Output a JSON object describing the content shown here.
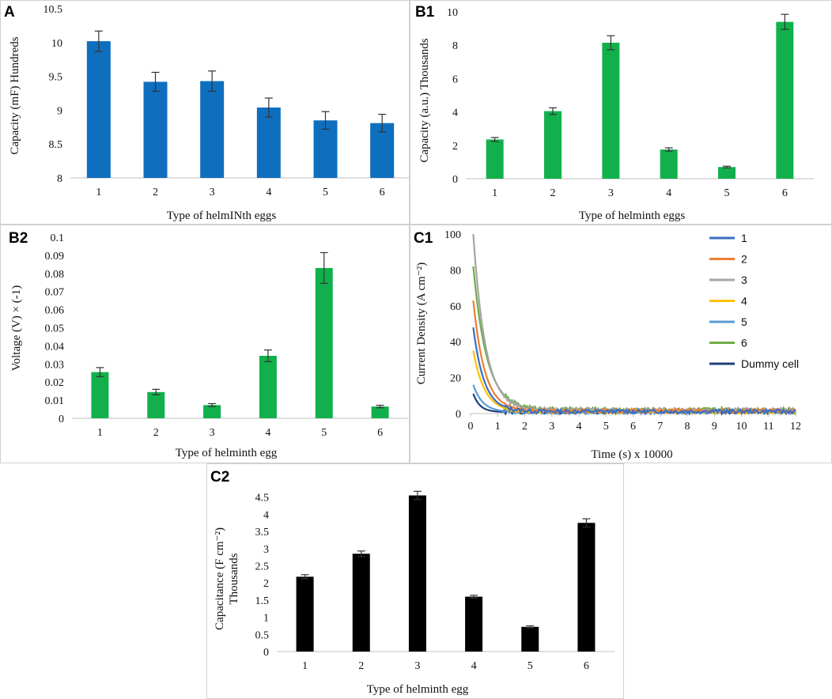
{
  "chart_data": [
    {
      "id": "A",
      "panel_label": "A",
      "type": "bar",
      "categories": [
        "1",
        "2",
        "3",
        "4",
        "5",
        "6"
      ],
      "values": [
        10.02,
        9.42,
        9.43,
        9.04,
        8.85,
        8.81
      ],
      "errors": [
        0.15,
        0.14,
        0.15,
        0.14,
        0.13,
        0.13
      ],
      "ylim": [
        8,
        10.5
      ],
      "yticks": [
        "8",
        "8.5",
        "9",
        "9.5",
        "10",
        "10.5"
      ],
      "ylabel": "Capacity (mF) Hundreds",
      "xlabel": "Type of helmINth eggs",
      "color": "#0f6fbf"
    },
    {
      "id": "B1",
      "panel_label": "B1",
      "type": "bar",
      "categories": [
        "1",
        "2",
        "3",
        "4",
        "5",
        "6"
      ],
      "values": [
        2.35,
        4.05,
        8.15,
        1.75,
        0.7,
        9.4
      ],
      "errors": [
        0.12,
        0.2,
        0.42,
        0.1,
        0.05,
        0.45
      ],
      "ylim": [
        0,
        10
      ],
      "yticks": [
        "0",
        "2",
        "4",
        "6",
        "8",
        "10"
      ],
      "ylabel": "Capacity (a.u.) Thousands",
      "xlabel": "Type of helminth eggs",
      "color": "#12b04c"
    },
    {
      "id": "B2",
      "panel_label": "B2",
      "type": "bar",
      "categories": [
        "1",
        "2",
        "3",
        "4",
        "5",
        "6"
      ],
      "values": [
        0.0255,
        0.0145,
        0.0073,
        0.0345,
        0.083,
        0.0065
      ],
      "errors": [
        0.0025,
        0.0015,
        0.0008,
        0.0032,
        0.0085,
        0.0007
      ],
      "ylim": [
        0,
        0.1
      ],
      "yticks": [
        "0",
        "0.01",
        "0.02",
        "0.03",
        "0.04",
        "0.05",
        "0.06",
        "0.07",
        "0.08",
        "0.09",
        "0.1"
      ],
      "ylabel": "Voltage (V) × (-1)",
      "xlabel": "Type of helminth egg",
      "color": "#12b04c"
    },
    {
      "id": "C1",
      "panel_label": "C1",
      "type": "line",
      "xlim": [
        0,
        12
      ],
      "ylim": [
        0,
        100
      ],
      "xticks": [
        "0",
        "1",
        "2",
        "3",
        "4",
        "5",
        "6",
        "7",
        "8",
        "9",
        "10",
        "11",
        "12"
      ],
      "yticks": [
        "0",
        "20",
        "40",
        "60",
        "80",
        "100"
      ],
      "ylabel": "Current Density (A cm⁻²)",
      "xlabel": "Time (s)  x 10000",
      "series": [
        {
          "name": "1",
          "color": "#3a6fc4",
          "peak": 48,
          "tau": 0.4,
          "base": 1.2
        },
        {
          "name": "2",
          "color": "#ed7d31",
          "peak": 63,
          "tau": 0.42,
          "base": 1.5
        },
        {
          "name": "3",
          "color": "#a5a5a5",
          "peak": 100,
          "tau": 0.45,
          "base": 2.0
        },
        {
          "name": "4",
          "color": "#ffc000",
          "peak": 35,
          "tau": 0.42,
          "base": 1.0
        },
        {
          "name": "5",
          "color": "#5b9bd5",
          "peak": 16,
          "tau": 0.35,
          "base": 0.8
        },
        {
          "name": "6",
          "color": "#70ad47",
          "peak": 82,
          "tau": 0.5,
          "base": 2.2
        },
        {
          "name": "Dummy cell",
          "color": "#1f3f7a",
          "peak": 11,
          "tau": 0.25,
          "base": 0.8
        }
      ]
    },
    {
      "id": "C2",
      "panel_label": "C2",
      "type": "bar",
      "categories": [
        "1",
        "2",
        "3",
        "4",
        "5",
        "6"
      ],
      "values": [
        2.18,
        2.85,
        4.55,
        1.6,
        0.72,
        3.75
      ],
      "errors": [
        0.06,
        0.08,
        0.12,
        0.04,
        0.03,
        0.12
      ],
      "ylim": [
        0,
        5
      ],
      "yticks": [
        "0",
        "0.5",
        "1",
        "1.5",
        "2",
        "2.5",
        "3",
        "3.5",
        "4",
        "4.5"
      ],
      "ylabel": "Capacitance (F cm⁻²)",
      "ylabel2": "Thousands",
      "xlabel": "Type of helminth egg",
      "color": "#000000"
    }
  ]
}
